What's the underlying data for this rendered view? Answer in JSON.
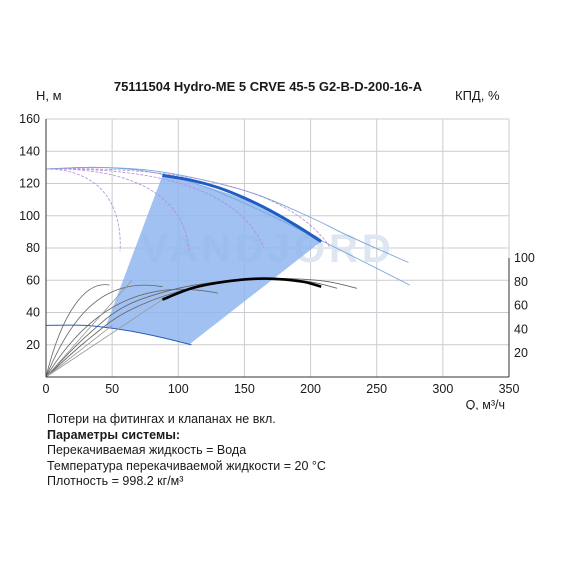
{
  "chart_data": {
    "type": "line",
    "title": "75111504 Hydro-ME 5 CRVE 45-5 G2-B-D-200-16-A",
    "ylabel_left": "H, м",
    "ylabel_right": "КПД, %",
    "xlabel": "Q, м³/ч",
    "watermark": "VANDJORD",
    "xlim": [
      0,
      350
    ],
    "ylim_left": [
      0,
      160
    ],
    "ylim_right": [
      0,
      120
    ],
    "x_ticks": [
      0,
      50,
      100,
      150,
      200,
      250,
      300,
      350
    ],
    "y_ticks_left": [
      20,
      40,
      60,
      80,
      100,
      120,
      140,
      160
    ],
    "y_ticks_right": [
      20,
      40,
      60,
      80,
      100
    ],
    "y_tick_left_top": 160,
    "grid": true,
    "colors": {
      "operating_region": "#8fb6ef",
      "head_curve": "#1f5cc4",
      "thin_head": "#7aa7db",
      "reduced_curves": "#b58cd6",
      "efficiency": "#000000",
      "efficiency_thin": "#666666",
      "grid": "#c9ccd1",
      "watermark": "#dbe4ef"
    },
    "series": [
      {
        "role": "head_max_operating",
        "x": [
          88,
          110,
          130,
          150,
          170,
          190,
          208
        ],
        "y": [
          125,
          122,
          117.5,
          111,
          103,
          93.5,
          84
        ]
      },
      {
        "role": "head_full_thin",
        "x": [
          0,
          40,
          80,
          120,
          160,
          200,
          230,
          274
        ],
        "y": [
          129,
          130,
          128,
          122,
          113,
          99,
          87,
          71
        ]
      },
      {
        "role": "head_thin_2",
        "x": [
          0,
          40,
          80,
          120,
          160,
          200,
          275
        ],
        "y": [
          129,
          130,
          127,
          118,
          104,
          88,
          57
        ]
      },
      {
        "role": "efficiency_operating",
        "x": [
          88,
          110,
          130,
          150,
          165,
          180,
          195,
          208
        ],
        "y": [
          48,
          55,
          58.5,
          60.5,
          61,
          60.5,
          59,
          56
        ]
      },
      {
        "role": "efficiency_thin",
        "x": [
          0,
          30,
          60,
          100,
          140,
          170,
          200,
          220
        ],
        "y": [
          0,
          25,
          44,
          55,
          60,
          61,
          59,
          55
        ]
      },
      {
        "role": "efficiency_thin_2",
        "x": [
          0,
          30,
          60,
          100,
          140,
          175,
          210,
          235
        ],
        "y": [
          0,
          22,
          40,
          53,
          59.5,
          61,
          59.5,
          55
        ]
      },
      {
        "role": "low_head_curve",
        "x": [
          0,
          30,
          60,
          85,
          110
        ],
        "y": [
          32,
          32,
          29,
          25,
          20
        ]
      }
    ]
  },
  "notes": {
    "line1": "Потери на фитингах и клапанах не вкл.",
    "line2": "Параметры системы:",
    "line3": "Перекачиваемая жидкость = Вода",
    "line4": "Температура перекачиваемой жидкости = 20 °C",
    "line5": "Плотность = 998.2 кг/м³"
  }
}
